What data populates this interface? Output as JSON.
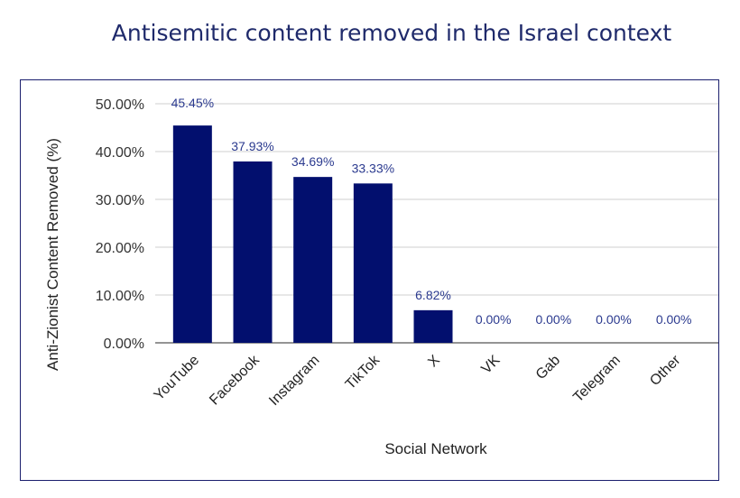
{
  "title": "Antisemitic content removed in the Israel context",
  "chart_data": {
    "type": "bar",
    "categories": [
      "YouTube",
      "Facebook",
      "Instagram",
      "TikTok",
      "X",
      "VK",
      "Gab",
      "Telegram",
      "Other"
    ],
    "values": [
      45.45,
      37.93,
      34.69,
      33.33,
      6.82,
      0,
      0,
      0,
      0
    ],
    "value_labels": [
      "45.45%",
      "37.93%",
      "34.69%",
      "33.33%",
      "6.82%",
      "0.00%",
      "0.00%",
      "0.00%",
      "0.00%"
    ],
    "title": "Antisemitic content removed in the Israel context",
    "xlabel": "Social Network",
    "ylabel": "Anti-Zionist Content Removed (%)",
    "ylim": [
      0,
      50
    ],
    "yticks": [
      0,
      10,
      20,
      30,
      40,
      50
    ],
    "ytick_labels": [
      "0.00%",
      "10.00%",
      "20.00%",
      "30.00%",
      "40.00%",
      "50.00%"
    ],
    "grid": true,
    "bar_color": "#020f6e",
    "label_color": "#2b3a8f",
    "frame_color": "#1b1f6e"
  }
}
